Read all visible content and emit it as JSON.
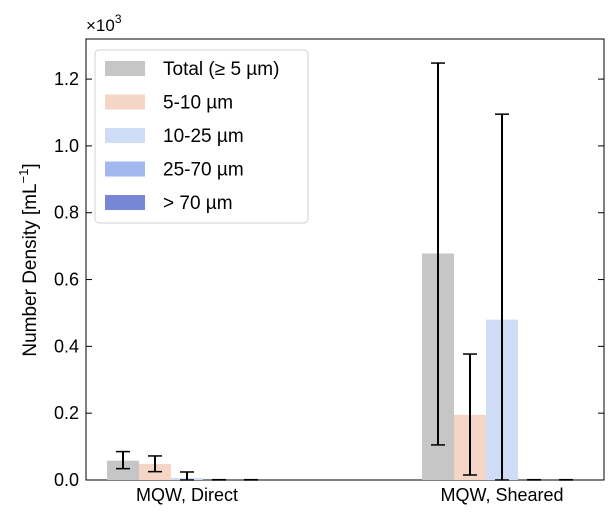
{
  "chart_data": {
    "type": "bar",
    "scale_label": "×10",
    "scale_exponent": "3",
    "ylabel_main": "Number Density [mL",
    "ylabel_sup": "−1",
    "ylabel_close": "]",
    "ylim": [
      0,
      1.32
    ],
    "yticks": [
      {
        "value": 0.0,
        "label": "0.0"
      },
      {
        "value": 0.2,
        "label": "0.2"
      },
      {
        "value": 0.4,
        "label": "0.4"
      },
      {
        "value": 0.6,
        "label": "0.6"
      },
      {
        "value": 0.8,
        "label": "0.8"
      },
      {
        "value": 1.0,
        "label": "1.0"
      },
      {
        "value": 1.2,
        "label": "1.2"
      }
    ],
    "categories": [
      "MQW, Direct",
      "MQW, Sheared"
    ],
    "legend_position": "top-left",
    "grid": false,
    "series": [
      {
        "name": "Total (≥  5 µm)",
        "color": "#c6c6c6",
        "values": [
          0.058,
          0.678
        ],
        "err_low": [
          0.034,
          0.105
        ],
        "err_high": [
          0.085,
          1.248
        ]
      },
      {
        "name": "5-10 µm",
        "color": "#f5d6c6",
        "values": [
          0.048,
          0.195
        ],
        "err_low": [
          0.025,
          0.015
        ],
        "err_high": [
          0.072,
          0.377
        ]
      },
      {
        "name": "10-25 µm",
        "color": "#cfdcf5",
        "values": [
          0.006,
          0.48
        ],
        "err_low": [
          0.0,
          0.0
        ],
        "err_high": [
          0.024,
          1.095
        ]
      },
      {
        "name": "25-70 µm",
        "color": "#a2b8ef",
        "values": [
          0.0,
          0.0
        ],
        "err_low": [
          0.0,
          0.0
        ],
        "err_high": [
          0.001,
          0.001
        ]
      },
      {
        "name": "> 70 µm",
        "color": "#7886d6",
        "values": [
          0.0,
          0.0
        ],
        "err_low": [
          0.0,
          0.0
        ],
        "err_high": [
          0.001,
          0.001
        ]
      }
    ]
  }
}
